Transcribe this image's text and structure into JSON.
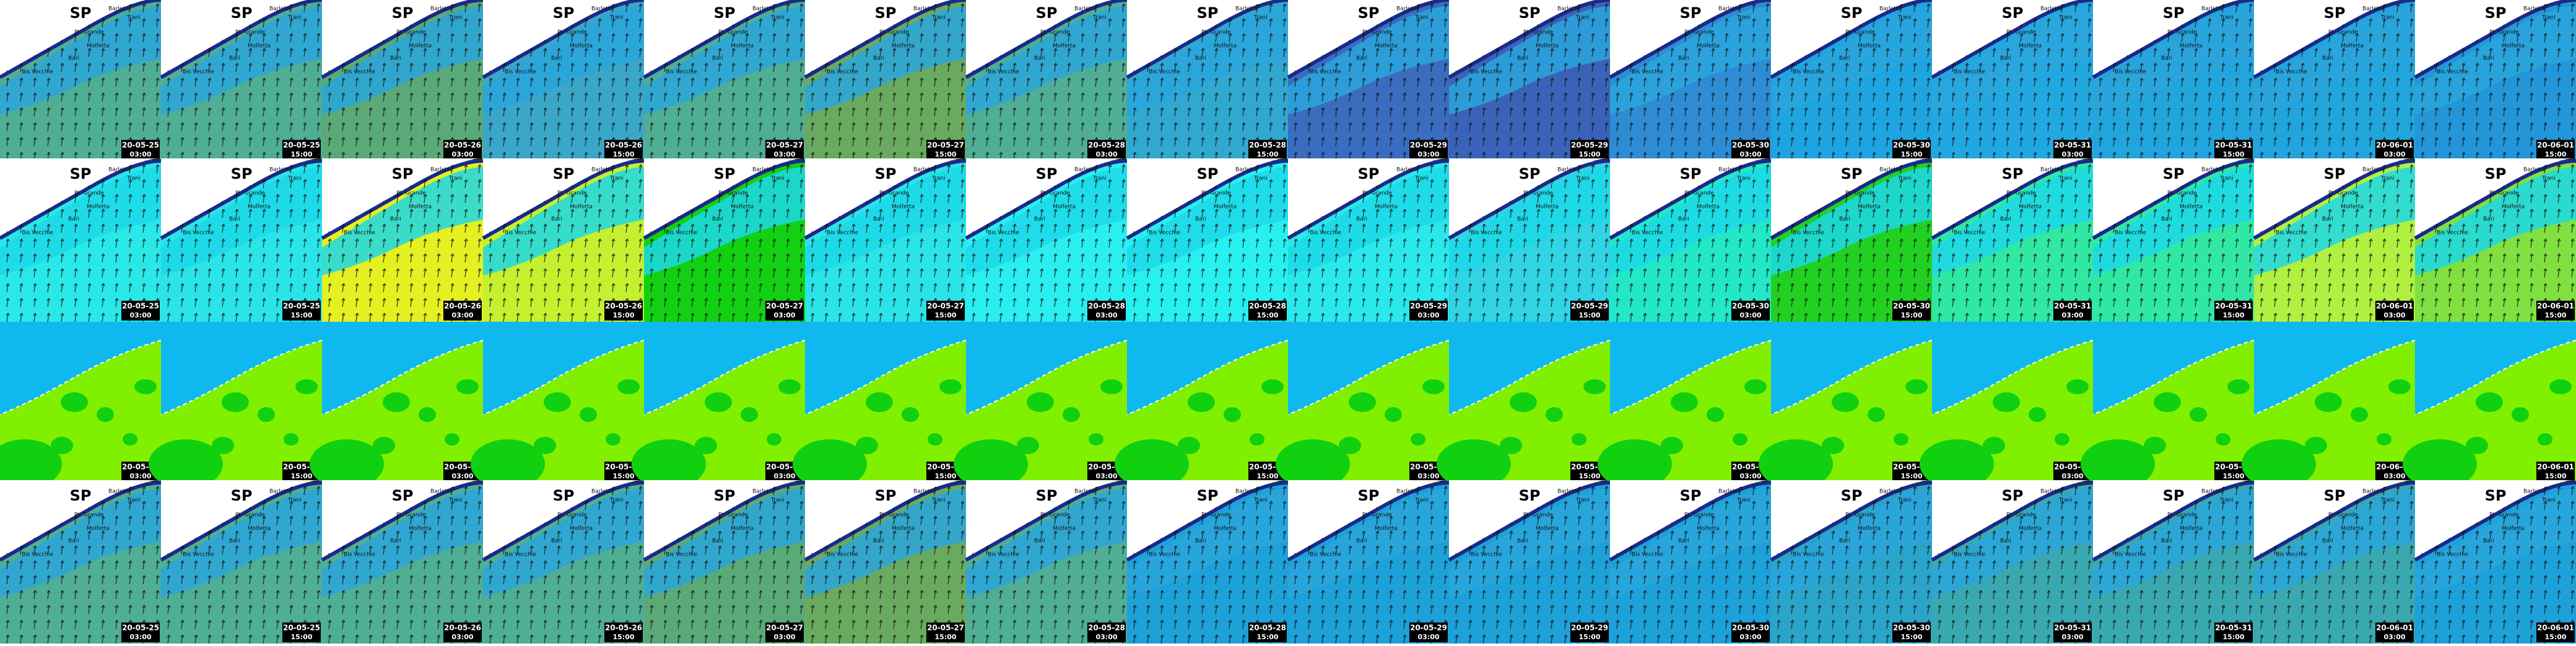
{
  "title": "SP",
  "places": [
    "Barletta",
    "Trani",
    "Pt. Grande",
    "Molfetta",
    "Bari",
    "Bis Vecchie"
  ],
  "columns": [
    {
      "date": "20-05-25",
      "time": "03:00"
    },
    {
      "date": "20-05-25",
      "time": "15:00"
    },
    {
      "date": "20-05-26",
      "time": "03:00"
    },
    {
      "date": "20-05-26",
      "time": "15:00"
    },
    {
      "date": "20-05-27",
      "time": "03:00"
    },
    {
      "date": "20-05-27",
      "time": "15:00"
    },
    {
      "date": "20-05-28",
      "time": "03:00"
    },
    {
      "date": "20-05-28",
      "time": "15:00"
    },
    {
      "date": "20-05-29",
      "time": "03:00"
    },
    {
      "date": "20-05-29",
      "time": "15:00"
    },
    {
      "date": "20-05-30",
      "time": "03:00"
    },
    {
      "date": "20-05-30",
      "time": "15:00"
    },
    {
      "date": "20-05-31",
      "time": "03:00"
    },
    {
      "date": "20-05-31",
      "time": "15:00"
    },
    {
      "date": "20-06-01",
      "time": "03:00"
    },
    {
      "date": "20-06-01",
      "time": "15:00"
    }
  ],
  "rows": [
    {
      "map": "coast",
      "show_title": true,
      "top_color": "#2aa6dc",
      "colors": [
        "#4fae94",
        "#4fae94",
        "#5aaa78",
        "#3aa6c8",
        "#4fae94",
        "#6aaa60",
        "#4fae94",
        "#30a8d0",
        "#3a6cc0",
        "#3a62b8",
        "#2e8cd4",
        "#1ea4e0",
        "#22a8e0",
        "#22a4dc",
        "#22a4dc",
        "#2296d8"
      ]
    },
    {
      "map": "coast",
      "show_title": true,
      "top_color": "#1cd8e8",
      "colors": [
        "#2ae8e8",
        "#2ae4e8",
        "#e4f020",
        "#c4f030",
        "#12d012",
        "#2ae4e8",
        "#2aeef0",
        "#28f0f0",
        "#2ae8ec",
        "#30d4e4",
        "#22e8c8",
        "#22d022",
        "#30e8a4",
        "#30e8a4",
        "#b0f040",
        "#80e040"
      ]
    },
    {
      "map": "land",
      "show_title": false,
      "top_color": "#10b8f0",
      "colors": [
        "#80f000",
        "#80f000",
        "#80f000",
        "#80f000",
        "#80f000",
        "#80f000",
        "#80f000",
        "#80f000",
        "#80f000",
        "#80f000",
        "#80f000",
        "#80f000",
        "#80f000",
        "#80f000",
        "#80f000",
        "#80f000"
      ]
    },
    {
      "map": "coast",
      "show_title": true,
      "top_color": "#2aa6dc",
      "colors": [
        "#4fae94",
        "#4fae94",
        "#4fae94",
        "#4fae94",
        "#5aaa78",
        "#6aaa60",
        "#4fae94",
        "#1ea0d8",
        "#1ea0d8",
        "#1ea0d8",
        "#1ea0d8",
        "#2aa4c8",
        "#3aa8b0",
        "#3aa8b0",
        "#3aa8b0",
        "#1ea0d8"
      ]
    }
  ]
}
